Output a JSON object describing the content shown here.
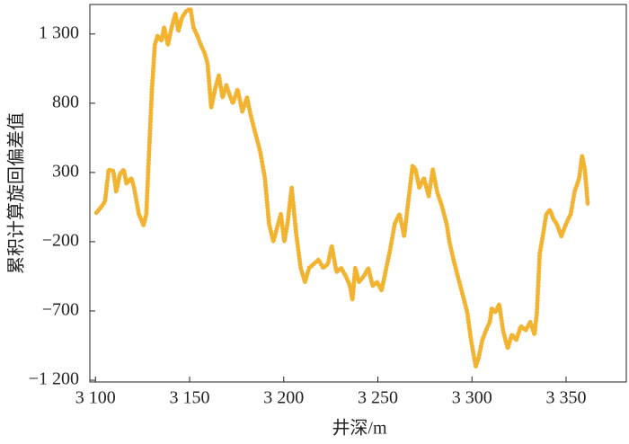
{
  "chart_data": {
    "type": "line",
    "x_label": "井深/m",
    "y_label": "累积计算旋回偏差值",
    "color": "#f2b331",
    "xlim": [
      3097,
      3382
    ],
    "ylim": [
      -1213,
      1513
    ],
    "xticks": [
      {
        "value": 3100,
        "label": "3 100"
      },
      {
        "value": 3150,
        "label": "3 150"
      },
      {
        "value": 3200,
        "label": "3 200"
      },
      {
        "value": 3250,
        "label": "3 250"
      },
      {
        "value": 3300,
        "label": "3 300"
      },
      {
        "value": 3350,
        "label": "3 350"
      }
    ],
    "yticks": [
      {
        "value": -1200,
        "label": "−1 200"
      },
      {
        "value": -700,
        "label": "−700"
      },
      {
        "value": -200,
        "label": "−200"
      },
      300,
      800,
      {
        "value": 1300,
        "label": "1 300"
      }
    ],
    "x": [
      3100.5,
      3103,
      3105,
      3107,
      3109.5,
      3111,
      3113,
      3115,
      3116.5,
      3119,
      3120.5,
      3123,
      3125.5,
      3127,
      3128.2,
      3130,
      3131.5,
      3133,
      3135,
      3136.5,
      3138.5,
      3140.5,
      3142.5,
      3144,
      3146,
      3148.5,
      3150.5,
      3152,
      3154,
      3156,
      3158,
      3159.5,
      3161.5,
      3163.5,
      3165.5,
      3167.5,
      3169.5,
      3171,
      3173,
      3175.5,
      3178,
      3180.5,
      3182.5,
      3185,
      3187.5,
      3190,
      3192.2,
      3194.5,
      3197,
      3198.5,
      3200.3,
      3202,
      3204.2,
      3206.5,
      3209,
      3211.3,
      3213.5,
      3216,
      3218.5,
      3221,
      3223.5,
      3225.5,
      3228,
      3230.5,
      3233,
      3235.2,
      3236.5,
      3238,
      3240,
      3242.5,
      3245,
      3247.2,
      3249.5,
      3252,
      3254.5,
      3256.5,
      3259,
      3261.5,
      3264,
      3266.5,
      3268.5,
      3270,
      3272,
      3274.5,
      3277,
      3279.2,
      3281.5,
      3284,
      3286.5,
      3288,
      3290.2,
      3292.5,
      3295,
      3297.5,
      3299.5,
      3302,
      3303.5,
      3305.5,
      3307.5,
      3309.5,
      3310.5,
      3312.5,
      3314.5,
      3316.5,
      3319,
      3321.2,
      3323.5,
      3326,
      3328.5,
      3331,
      3333.2,
      3334.5,
      3336,
      3338,
      3339.5,
      3341.5,
      3343.2,
      3345,
      3347.5,
      3350,
      3352.5,
      3354.5,
      3357,
      3358.5,
      3360,
      3361.5
    ],
    "values": [
      10,
      50,
      90,
      320,
      310,
      160,
      290,
      320,
      220,
      260,
      190,
      0,
      -80,
      0,
      380,
      900,
      1220,
      1290,
      1250,
      1350,
      1220,
      1350,
      1450,
      1320,
      1420,
      1470,
      1480,
      1350,
      1290,
      1220,
      1160,
      1090,
      770,
      900,
      1000,
      840,
      930,
      870,
      800,
      900,
      740,
      840,
      710,
      580,
      450,
      260,
      -70,
      -200,
      -70,
      0,
      -200,
      -70,
      190,
      -130,
      -390,
      -490,
      -390,
      -360,
      -330,
      -390,
      -360,
      -230,
      -420,
      -390,
      -450,
      -520,
      -620,
      -390,
      -490,
      -450,
      -390,
      -520,
      -490,
      -550,
      -390,
      -260,
      -70,
      0,
      -160,
      130,
      350,
      320,
      190,
      260,
      130,
      320,
      160,
      60,
      -70,
      -200,
      -330,
      -450,
      -580,
      -710,
      -910,
      -1100,
      -1040,
      -910,
      -840,
      -780,
      -680,
      -710,
      -650,
      -840,
      -970,
      -870,
      -910,
      -810,
      -840,
      -780,
      -870,
      -710,
      -290,
      -130,
      0,
      30,
      -35,
      -70,
      -160,
      -70,
      0,
      160,
      260,
      420,
      320,
      70
    ]
  }
}
